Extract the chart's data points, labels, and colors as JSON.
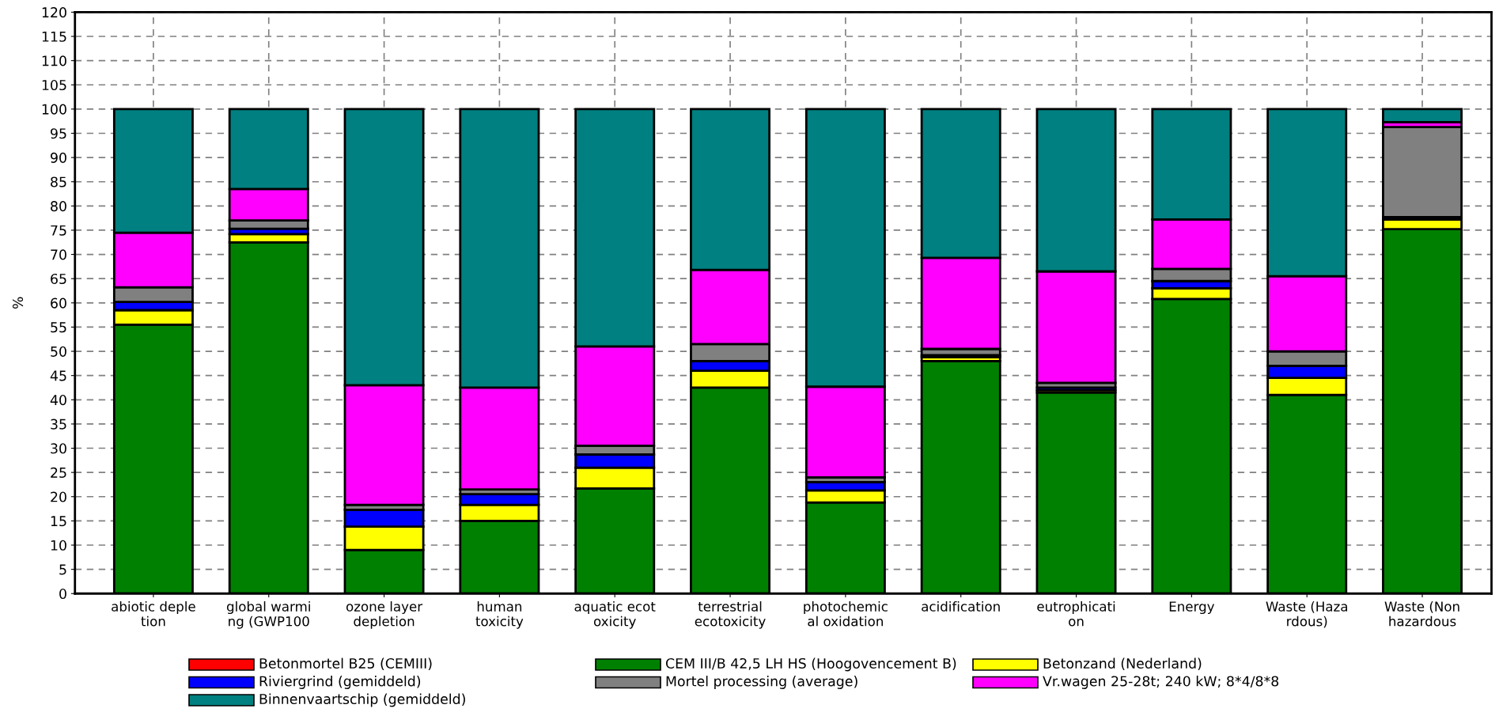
{
  "chart_data": {
    "type": "bar",
    "stacked": true,
    "ylabel": "%",
    "ylim": [
      0,
      120
    ],
    "yticks": [
      0,
      5,
      10,
      15,
      20,
      25,
      30,
      35,
      40,
      45,
      50,
      55,
      60,
      65,
      70,
      75,
      80,
      85,
      90,
      95,
      100,
      105,
      110,
      115,
      120
    ],
    "grid": true,
    "legend": "bottom",
    "categories": [
      "abiotic deple\ntion",
      "global warmi\nng (GWP100",
      "ozone layer\ndepletion",
      "human\ntoxicity",
      "aquatic ecot\noxicity",
      "terrestrial\necotoxicity",
      "photochemic\nal oxidation",
      "acidification",
      "eutrophicati\non",
      "Energy",
      "Waste (Haza\nrdous)",
      "Waste (Non\nhazardous"
    ],
    "series": [
      {
        "name": "Betonmortel B25 (CEMIII)",
        "color": "#ff0000",
        "values": [
          0,
          0,
          0,
          0,
          0,
          0,
          0,
          0,
          0,
          0,
          0,
          0
        ]
      },
      {
        "name": "CEM III/B 42,5 LH HS (Hoogovencement B)",
        "color": "#008000",
        "values": [
          55.5,
          72.5,
          9,
          15,
          21.7,
          42.5,
          18.8,
          48,
          41.5,
          60.8,
          41,
          75.2
        ]
      },
      {
        "name": "Betonzand (Nederland)",
        "color": "#ffff00",
        "values": [
          3,
          1.7,
          4.8,
          3.3,
          4.3,
          3.5,
          2.5,
          0.8,
          0.5,
          2.2,
          3.5,
          2
        ]
      },
      {
        "name": "Riviergrind (gemiddeld)",
        "color": "#0000ff",
        "values": [
          1.7,
          1.1,
          3.5,
          2.2,
          2.7,
          2,
          1.7,
          0.4,
          0.5,
          1.5,
          2.5,
          0.5
        ]
      },
      {
        "name": "Mortel processing (average)",
        "color": "#808080",
        "values": [
          3,
          1.7,
          1,
          1,
          1.8,
          3.5,
          1,
          1.3,
          1,
          2.5,
          3,
          18.6
        ]
      },
      {
        "name": "Vr.wagen 25-28t; 240 kW; 8*4/8*8",
        "color": "#ff00ff",
        "values": [
          11.3,
          6.5,
          24.7,
          21,
          20.5,
          15.3,
          18.7,
          18.8,
          23,
          10.2,
          15.5,
          1
        ]
      },
      {
        "name": "Binnenvaartschip (gemiddeld)",
        "color": "#008080",
        "values": [
          25.5,
          16.5,
          57,
          57.5,
          49,
          33.2,
          57.3,
          30.7,
          33.5,
          22.8,
          34.5,
          2.7
        ]
      }
    ]
  }
}
